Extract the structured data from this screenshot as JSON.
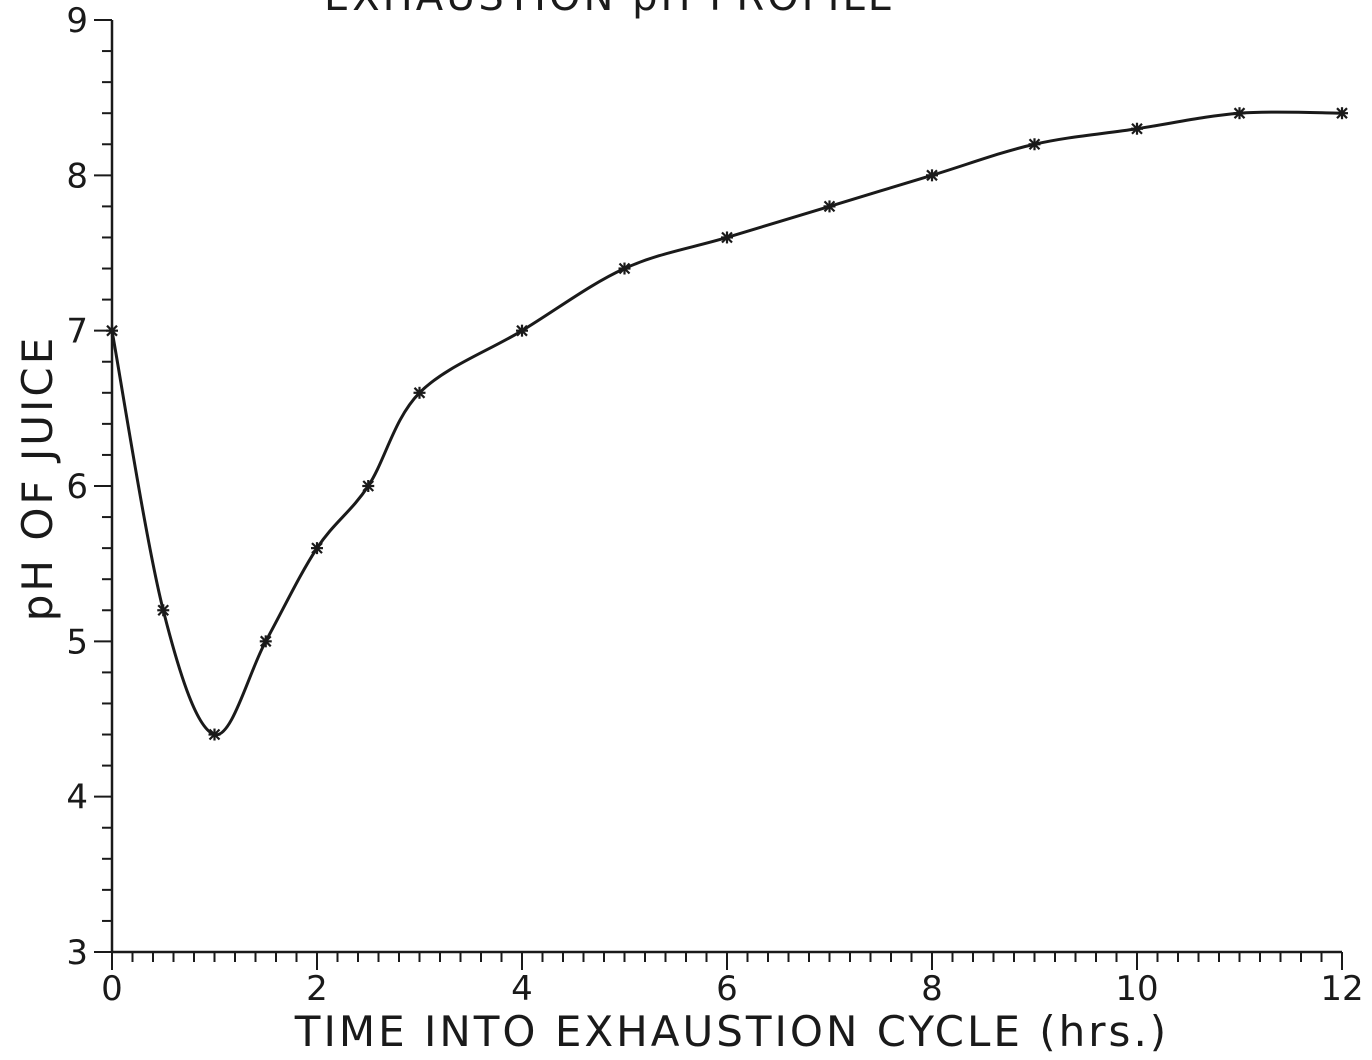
{
  "chart_data": {
    "type": "line",
    "title": "EXHAUSTION pH PROFILE",
    "xlabel": "TIME INTO EXHAUSTION CYCLE (hrs.)",
    "ylabel": "pH OF JUICE",
    "xlim": [
      0,
      12
    ],
    "ylim": [
      3,
      9
    ],
    "x_ticks": [
      0,
      2,
      4,
      6,
      8,
      10,
      12
    ],
    "y_ticks": [
      3,
      4,
      5,
      6,
      7,
      8,
      9
    ],
    "grid": false,
    "line_color": "#1a1a1a",
    "series": [
      {
        "x": [
          0,
          0.5,
          1,
          1.5,
          2,
          2.5,
          3,
          4,
          5,
          6,
          7,
          8,
          9,
          10,
          11,
          12
        ],
        "y": [
          7.0,
          5.2,
          4.4,
          5.0,
          5.6,
          6.0,
          6.6,
          7.0,
          7.4,
          7.6,
          7.8,
          8.0,
          8.2,
          8.3,
          8.4,
          8.4
        ]
      }
    ]
  }
}
